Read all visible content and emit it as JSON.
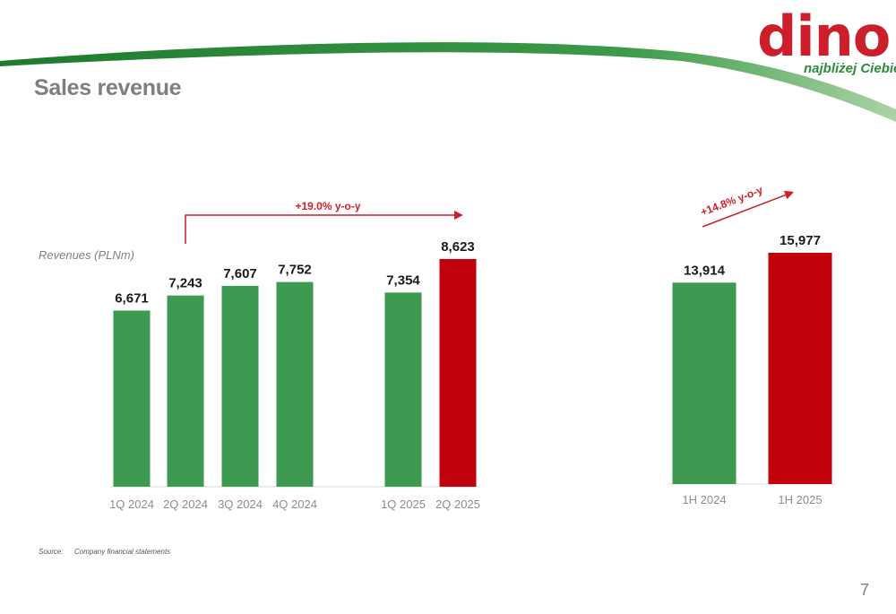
{
  "page": {
    "title": "Sales revenue",
    "page_number": "7",
    "source_label": "Source:",
    "source_text": "Company financial statements"
  },
  "logo": {
    "word": "dino",
    "tagline": "najbliżej Ciebie"
  },
  "colors": {
    "green": "#3d9a50",
    "red": "#c0000b",
    "title_gray": "#7f7f7f",
    "accent_red": "#cc1f2b"
  },
  "chart_data": [
    {
      "type": "bar",
      "ylabel": "Revenues (PLNm)",
      "categories": [
        "1Q 2024",
        "2Q 2024",
        "3Q 2024",
        "4Q 2024",
        "1Q 2025",
        "2Q 2025"
      ],
      "values": [
        6671,
        7243,
        7607,
        7752,
        7354,
        8623
      ],
      "value_labels": [
        "6,671",
        "7,243",
        "7,607",
        "7,752",
        "7,354",
        "8,623"
      ],
      "highlight_index": 5,
      "growth_label": "+19.0% y-o-y",
      "ylim": [
        0,
        9000
      ]
    },
    {
      "type": "bar",
      "categories": [
        "1H 2024",
        "1H 2025"
      ],
      "values": [
        13914,
        15977
      ],
      "value_labels": [
        "13,914",
        "15,977"
      ],
      "highlight_index": 1,
      "growth_label": "+14.8% y-o-y",
      "ylim": [
        0,
        17000
      ]
    }
  ]
}
